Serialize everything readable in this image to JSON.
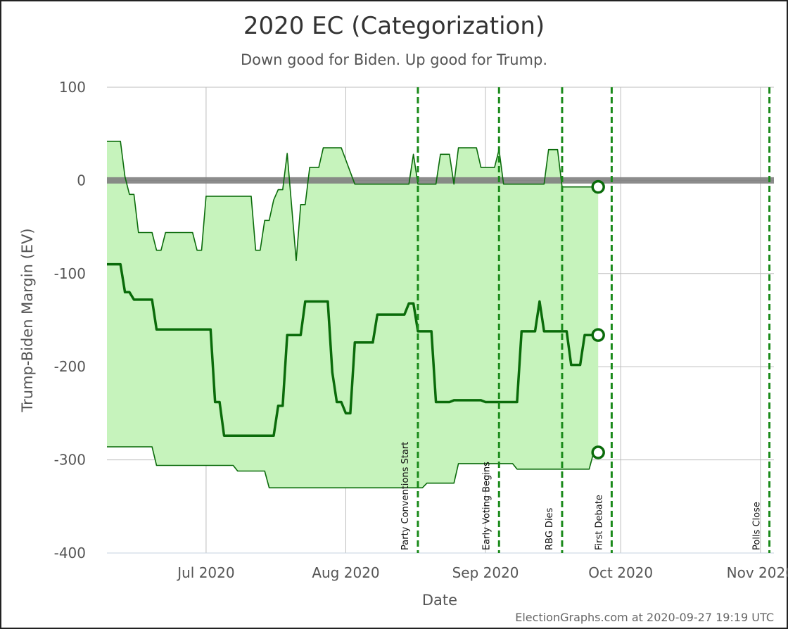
{
  "chart_data": {
    "type": "area",
    "title": "2020 EC (Categorization)",
    "subtitle": "Down good for Biden. Up good for Trump.",
    "xlabel": "Date",
    "ylabel": "Trump-Biden Margin (EV)",
    "credit": "ElectionGraphs.com at 2020-09-27 19:19 UTC",
    "ylim": [
      -400,
      100
    ],
    "xlim": [
      "2020-06-09",
      "2020-11-04"
    ],
    "grid": true,
    "yticks": [
      {
        "value": 100,
        "label": "100"
      },
      {
        "value": 0,
        "label": "0"
      },
      {
        "value": -100,
        "label": "-100"
      },
      {
        "value": -200,
        "label": "-200"
      },
      {
        "value": -300,
        "label": "-300"
      },
      {
        "value": -400,
        "label": "-400"
      }
    ],
    "xticks": [
      {
        "date": "2020-07-01",
        "label": "Jul 2020"
      },
      {
        "date": "2020-08-01",
        "label": "Aug 2020"
      },
      {
        "date": "2020-09-01",
        "label": "Sep 2020"
      },
      {
        "date": "2020-10-01",
        "label": "Oct 2020"
      },
      {
        "date": "2020-11-01",
        "label": "Nov 2020"
      }
    ],
    "events": [
      {
        "date": "2020-08-17",
        "label": "Party Conventions Start"
      },
      {
        "date": "2020-09-04",
        "label": "Early Voting Begins"
      },
      {
        "date": "2020-09-18",
        "label": "RBG Dies"
      },
      {
        "date": "2020-09-29",
        "label": "First Debate"
      },
      {
        "date": "2020-11-03",
        "label": "Polls Close"
      }
    ],
    "colors": {
      "fill": "#c6f3bc",
      "line": "#0a6b0a",
      "event": "#1a8a1a",
      "zero": "#808080",
      "grid": "#bdbdbd"
    },
    "series": [
      {
        "role": "upper",
        "points": [
          [
            "2020-06-09",
            42
          ],
          [
            "2020-06-12",
            42
          ],
          [
            "2020-06-13",
            4
          ],
          [
            "2020-06-14",
            -15
          ],
          [
            "2020-06-15",
            -15
          ],
          [
            "2020-06-16",
            -56
          ],
          [
            "2020-06-19",
            -56
          ],
          [
            "2020-06-20",
            -75
          ],
          [
            "2020-06-21",
            -75
          ],
          [
            "2020-06-22",
            -56
          ],
          [
            "2020-06-28",
            -56
          ],
          [
            "2020-06-29",
            -75
          ],
          [
            "2020-06-30",
            -75
          ],
          [
            "2020-07-01",
            -17
          ],
          [
            "2020-07-11",
            -17
          ],
          [
            "2020-07-12",
            -75
          ],
          [
            "2020-07-13",
            -75
          ],
          [
            "2020-07-14",
            -43
          ],
          [
            "2020-07-15",
            -43
          ],
          [
            "2020-07-16",
            -21
          ],
          [
            "2020-07-17",
            -10
          ],
          [
            "2020-07-18",
            -10
          ],
          [
            "2020-07-19",
            29
          ],
          [
            "2020-07-21",
            -86
          ],
          [
            "2020-07-22",
            -26
          ],
          [
            "2020-07-23",
            -26
          ],
          [
            "2020-07-24",
            14
          ],
          [
            "2020-07-26",
            14
          ],
          [
            "2020-07-27",
            35
          ],
          [
            "2020-07-31",
            35
          ],
          [
            "2020-08-03",
            -4
          ],
          [
            "2020-08-15",
            -4
          ],
          [
            "2020-08-16",
            28
          ],
          [
            "2020-08-17",
            -4
          ],
          [
            "2020-08-21",
            -4
          ],
          [
            "2020-08-22",
            28
          ],
          [
            "2020-08-24",
            28
          ],
          [
            "2020-08-25",
            -4
          ],
          [
            "2020-08-26",
            35
          ],
          [
            "2020-08-30",
            35
          ],
          [
            "2020-08-31",
            14
          ],
          [
            "2020-09-03",
            14
          ],
          [
            "2020-09-04",
            33
          ],
          [
            "2020-09-05",
            -4
          ],
          [
            "2020-09-14",
            -4
          ],
          [
            "2020-09-15",
            33
          ],
          [
            "2020-09-17",
            33
          ],
          [
            "2020-09-18",
            -7
          ],
          [
            "2020-09-26",
            -7
          ]
        ]
      },
      {
        "role": "expected",
        "points": [
          [
            "2020-06-09",
            -90
          ],
          [
            "2020-06-12",
            -90
          ],
          [
            "2020-06-13",
            -120
          ],
          [
            "2020-06-14",
            -120
          ],
          [
            "2020-06-15",
            -128
          ],
          [
            "2020-06-19",
            -128
          ],
          [
            "2020-06-20",
            -160
          ],
          [
            "2020-07-02",
            -160
          ],
          [
            "2020-07-03",
            -238
          ],
          [
            "2020-07-04",
            -238
          ],
          [
            "2020-07-05",
            -274
          ],
          [
            "2020-07-16",
            -274
          ],
          [
            "2020-07-17",
            -242
          ],
          [
            "2020-07-18",
            -242
          ],
          [
            "2020-07-19",
            -166
          ],
          [
            "2020-07-22",
            -166
          ],
          [
            "2020-07-23",
            -130
          ],
          [
            "2020-07-28",
            -130
          ],
          [
            "2020-07-29",
            -206
          ],
          [
            "2020-07-30",
            -238
          ],
          [
            "2020-07-31",
            -238
          ],
          [
            "2020-08-01",
            -250
          ],
          [
            "2020-08-02",
            -250
          ],
          [
            "2020-08-03",
            -174
          ],
          [
            "2020-08-07",
            -174
          ],
          [
            "2020-08-08",
            -144
          ],
          [
            "2020-08-14",
            -144
          ],
          [
            "2020-08-15",
            -132
          ],
          [
            "2020-08-16",
            -132
          ],
          [
            "2020-08-17",
            -162
          ],
          [
            "2020-08-20",
            -162
          ],
          [
            "2020-08-21",
            -238
          ],
          [
            "2020-08-24",
            -238
          ],
          [
            "2020-08-25",
            -236
          ],
          [
            "2020-08-31",
            -236
          ],
          [
            "2020-09-01",
            -238
          ],
          [
            "2020-09-08",
            -238
          ],
          [
            "2020-09-09",
            -162
          ],
          [
            "2020-09-12",
            -162
          ],
          [
            "2020-09-13",
            -130
          ],
          [
            "2020-09-14",
            -162
          ],
          [
            "2020-09-18",
            -162
          ],
          [
            "2020-09-19",
            -162
          ],
          [
            "2020-09-20",
            -198
          ],
          [
            "2020-09-22",
            -198
          ],
          [
            "2020-09-23",
            -166
          ],
          [
            "2020-09-26",
            -166
          ]
        ]
      },
      {
        "role": "lower",
        "points": [
          [
            "2020-06-09",
            -286
          ],
          [
            "2020-06-19",
            -286
          ],
          [
            "2020-06-20",
            -306
          ],
          [
            "2020-07-07",
            -306
          ],
          [
            "2020-07-08",
            -312
          ],
          [
            "2020-07-14",
            -312
          ],
          [
            "2020-07-15",
            -330
          ],
          [
            "2020-08-18",
            -330
          ],
          [
            "2020-08-19",
            -325
          ],
          [
            "2020-08-25",
            -325
          ],
          [
            "2020-08-26",
            -304
          ],
          [
            "2020-09-07",
            -304
          ],
          [
            "2020-09-08",
            -310
          ],
          [
            "2020-09-24",
            -310
          ],
          [
            "2020-09-25",
            -292
          ],
          [
            "2020-09-26",
            -292
          ]
        ]
      }
    ],
    "endpoints": [
      {
        "date": "2020-09-26",
        "value": -7
      },
      {
        "date": "2020-09-26",
        "value": -166
      },
      {
        "date": "2020-09-26",
        "value": -292
      }
    ]
  }
}
